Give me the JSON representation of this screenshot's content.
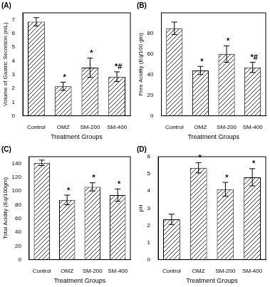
{
  "chart_data": [
    {
      "type": "bar",
      "title": "(A)",
      "xlabel": "Treatment Groups",
      "ylabel": "Volume of Gastric Secretion (mL)",
      "categories": [
        "Control",
        "OMZ",
        "SM-200",
        "SM-400"
      ],
      "values": [
        6.85,
        2.15,
        3.5,
        2.85
      ],
      "errors": [
        0.3,
        0.3,
        0.7,
        0.35
      ],
      "annotations": [
        null,
        "*",
        "*",
        "*#"
      ],
      "color": "#000000",
      "ylim": [
        0,
        7.5
      ],
      "yticks": [
        0,
        1,
        2,
        3,
        4,
        5,
        6,
        7
      ],
      "grid": false
    },
    {
      "type": "bar",
      "title": "(B)",
      "xlabel": "Treatment Groups",
      "ylabel": "Free Acidity (Eq/100 gm)",
      "categories": [
        "Control",
        "OMZ",
        "SM-200",
        "SM-400"
      ],
      "values": [
        85,
        44,
        60,
        47
      ],
      "errors": [
        6,
        4,
        8,
        5
      ],
      "annotations": [
        null,
        "*",
        "*",
        "*#"
      ],
      "color": "#000000",
      "ylim": [
        0,
        100
      ],
      "yticks": [
        0,
        20,
        40,
        60,
        80
      ],
      "grid": false
    },
    {
      "type": "bar",
      "title": "(C)",
      "xlabel": "Treatment Groups",
      "ylabel": "Total Acidity (Eq/100gm)",
      "categories": [
        "Control",
        "OMZ",
        "SM-200",
        "SM-400"
      ],
      "values": [
        141,
        87,
        106,
        94
      ],
      "errors": [
        4,
        7,
        6,
        9
      ],
      "annotations": [
        null,
        "*",
        "*",
        "*"
      ],
      "color": "#000000",
      "ylim": [
        0,
        150
      ],
      "yticks": [
        0,
        20,
        40,
        60,
        80,
        100,
        120,
        140
      ],
      "grid": false
    },
    {
      "type": "bar",
      "title": "(D)",
      "xlabel": "Treatment Groups",
      "ylabel": "pH",
      "categories": [
        "Control",
        "OMZ",
        "SM-200",
        "SM-400"
      ],
      "values": [
        2.35,
        5.35,
        4.1,
        4.8
      ],
      "errors": [
        0.3,
        0.3,
        0.4,
        0.5
      ],
      "annotations": [
        null,
        "*",
        "*",
        "*"
      ],
      "color": "#000000",
      "ylim": [
        0,
        6
      ],
      "yticks": [
        0,
        1,
        2,
        3,
        4,
        5,
        6
      ],
      "grid": false
    }
  ]
}
